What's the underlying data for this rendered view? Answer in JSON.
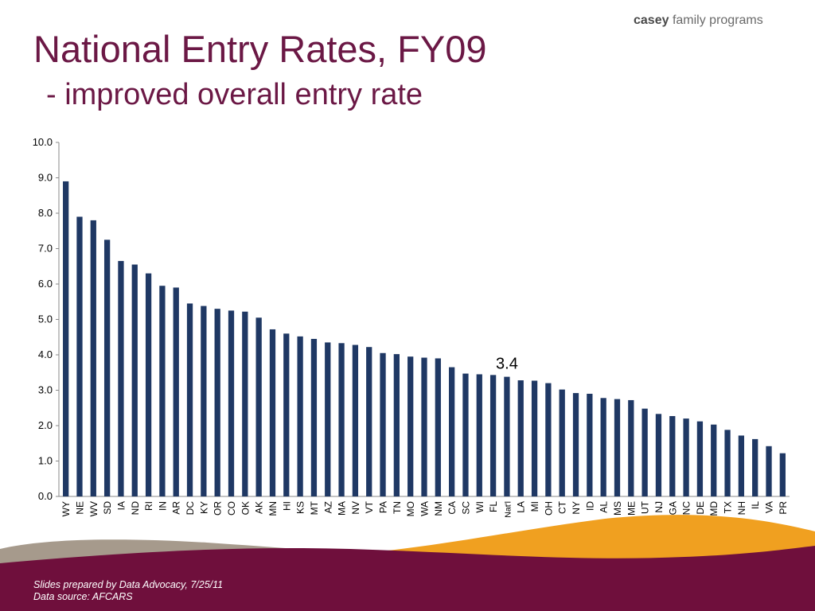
{
  "header": {
    "logo_bold": "casey",
    "logo_rest": "family programs",
    "title": "National Entry Rates, FY09",
    "subtitle": "- improved overall entry rate"
  },
  "footer": {
    "line1": "Slides prepared by Data Advocacy, 7/25/11",
    "line2": "Data source: AFCARS"
  },
  "colors": {
    "bar": "#1f3864",
    "title": "#6b1845",
    "maroon_band": "#6f0f3c",
    "orange_band": "#f0a020",
    "taupe_band": "#a69a8c"
  },
  "chart_data": {
    "type": "bar",
    "categories": [
      "WY",
      "NE",
      "WV",
      "SD",
      "IA",
      "ND",
      "RI",
      "IN",
      "AR",
      "DC",
      "KY",
      "OR",
      "CO",
      "OK",
      "AK",
      "MN",
      "HI",
      "KS",
      "MT",
      "AZ",
      "MA",
      "NV",
      "VT",
      "PA",
      "TN",
      "MO",
      "WA",
      "NM",
      "CA",
      "SC",
      "WI",
      "FL",
      "Nat'l",
      "LA",
      "MI",
      "OH",
      "CT",
      "NY",
      "ID",
      "AL",
      "MS",
      "ME",
      "UT",
      "NJ",
      "GA",
      "NC",
      "DE",
      "MD",
      "TX",
      "NH",
      "IL",
      "VA",
      "PR"
    ],
    "values": [
      8.9,
      7.9,
      7.8,
      7.25,
      6.65,
      6.55,
      6.3,
      5.95,
      5.9,
      5.45,
      5.38,
      5.3,
      5.25,
      5.22,
      5.05,
      4.72,
      4.6,
      4.52,
      4.45,
      4.35,
      4.33,
      4.28,
      4.22,
      4.05,
      4.02,
      3.95,
      3.92,
      3.9,
      3.65,
      3.47,
      3.45,
      3.43,
      3.38,
      3.28,
      3.27,
      3.2,
      3.02,
      2.92,
      2.9,
      2.78,
      2.75,
      2.72,
      2.48,
      2.33,
      2.27,
      2.2,
      2.12,
      2.03,
      1.88,
      1.72,
      1.62,
      1.42,
      1.22
    ],
    "title": "",
    "xlabel": "",
    "ylabel": "",
    "ylim": [
      0,
      10
    ],
    "yticks": [
      "0.0",
      "1.0",
      "2.0",
      "3.0",
      "4.0",
      "5.0",
      "6.0",
      "7.0",
      "8.0",
      "9.0",
      "10.0"
    ],
    "grid": false,
    "annotations": [
      {
        "category": "Nat'l",
        "text": "3.4"
      }
    ]
  }
}
